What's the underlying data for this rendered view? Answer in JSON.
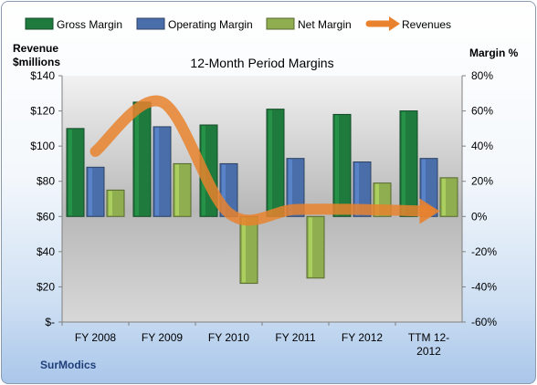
{
  "chart_data": {
    "type": "bar",
    "title": "12-Month Period Margins",
    "company": "SurModics",
    "left_axis_title": [
      "Revenue",
      "$millions"
    ],
    "right_axis_title": "Margin %",
    "categories": [
      "FY 2008",
      "FY 2009",
      "FY 2010",
      "FY 2011",
      "FY 2012",
      "TTM 12-2012"
    ],
    "category_lines": [
      [
        "FY 2008"
      ],
      [
        "FY 2009"
      ],
      [
        "FY 2010"
      ],
      [
        "FY 2011"
      ],
      [
        "FY 2012"
      ],
      [
        "TTM 12-",
        "2012"
      ]
    ],
    "left_ticks": [
      "$140",
      "$120",
      "$100",
      "$80",
      "$60",
      "$40",
      "$20",
      "$-"
    ],
    "right_ticks": [
      "80%",
      "60%",
      "40%",
      "20%",
      "0%",
      "-20%",
      "-40%",
      "-60%"
    ],
    "left_ylim": [
      0,
      140
    ],
    "right_ylim": [
      -60,
      80
    ],
    "series": [
      {
        "name": "Gross Margin",
        "axis": "right",
        "color": "#1f7a3d",
        "values": [
          50,
          65,
          52,
          61,
          58,
          60
        ]
      },
      {
        "name": "Operating Margin",
        "axis": "right",
        "color": "#4a6ea9",
        "values": [
          28,
          51,
          30,
          33,
          31,
          33
        ]
      },
      {
        "name": "Net Margin",
        "axis": "right",
        "color": "#8fae4f",
        "values": [
          15,
          30,
          -38,
          -35,
          19,
          22
        ]
      }
    ],
    "line_series": {
      "name": "Revenues",
      "axis": "left",
      "color": "#e8822e",
      "values": [
        97,
        125,
        62,
        64,
        64,
        63
      ]
    },
    "legend_position": "top",
    "grid": false
  }
}
